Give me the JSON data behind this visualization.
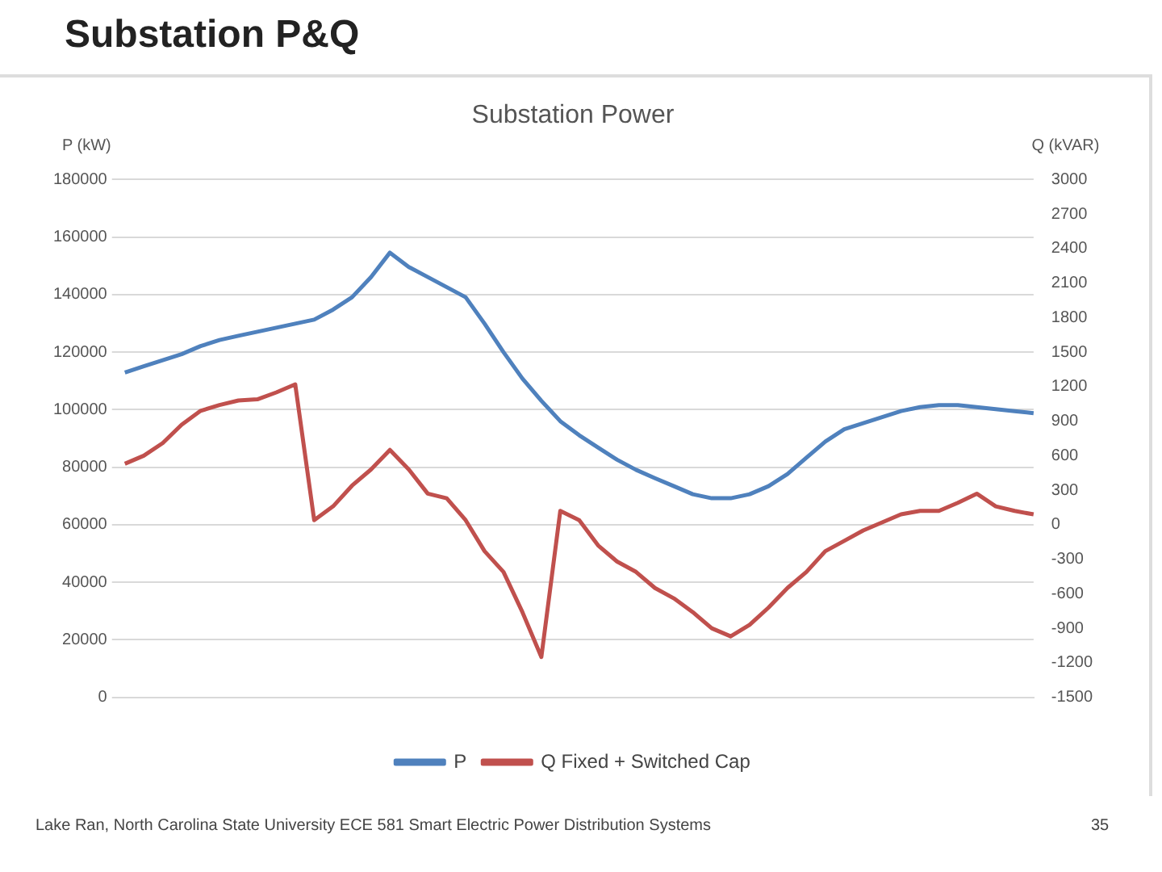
{
  "chart_data": {
    "type": "line",
    "title": "Substation Power",
    "ylabel": "P (kW)",
    "y2label": "Q (kVAR)",
    "annotations": [
      "Substation P&Q",
      "Lake Ran, North Carolina State University   ECE 581 Smart Electric Power Distribution Systems",
      "35"
    ],
    "categories": [
      null,
      null,
      null,
      null,
      null,
      null,
      null,
      null,
      null,
      null,
      null,
      null,
      null,
      null,
      null,
      null,
      null,
      null,
      null,
      null,
      null,
      null,
      null,
      null,
      null,
      null,
      null,
      null,
      null,
      null,
      null,
      null,
      null,
      null,
      null,
      null,
      null,
      null,
      null,
      null,
      null,
      null,
      null,
      null,
      null,
      null,
      null,
      null,
      null
    ],
    "series": [
      {
        "name": "P",
        "color": "#4f81bd",
        "values": [
          112900,
          115100,
          117200,
          119300,
          122100,
          124200,
          125700,
          127100,
          128500,
          129900,
          131300,
          134800,
          139100,
          146100,
          154600,
          149600,
          146100,
          142600,
          139100,
          129900,
          120000,
          110800,
          103100,
          96000,
          91100,
          86800,
          82600,
          79100,
          76200,
          73400,
          70600,
          69200,
          69200,
          70600,
          73400,
          77600,
          83300,
          88900,
          93200,
          95300,
          97400,
          99500,
          100900,
          101600,
          101600,
          100900,
          100200,
          99500,
          98800
        ]
      },
      {
        "name": "Q Fixed + Switched Cap",
        "color": "#c0504d",
        "axis": "y2",
        "values": [
          530,
          600,
          710,
          870,
          990,
          1040,
          1080,
          1090,
          1150,
          1220,
          40,
          160,
          340,
          480,
          650,
          480,
          270,
          230,
          40,
          -230,
          -410,
          -760,
          -1150,
          120,
          40,
          -180,
          -320,
          -410,
          -550,
          -640,
          -760,
          -900,
          -970,
          -870,
          -720,
          -550,
          -410,
          -230,
          -140,
          -50,
          20,
          90,
          120,
          120,
          190,
          270,
          160,
          120,
          90
        ]
      }
    ],
    "ylim": [
      0,
      180000
    ],
    "yticks": [
      0,
      20000,
      40000,
      60000,
      80000,
      100000,
      120000,
      140000,
      160000,
      180000
    ],
    "y2lim": [
      -1500,
      3000
    ],
    "y2ticks": [
      -1500,
      -1200,
      -900,
      -600,
      -300,
      0,
      300,
      600,
      900,
      1200,
      1500,
      1800,
      2100,
      2400,
      2700,
      3000
    ],
    "grid": "y",
    "legend": "bottom",
    "marker": "none",
    "line_style": "solid"
  }
}
